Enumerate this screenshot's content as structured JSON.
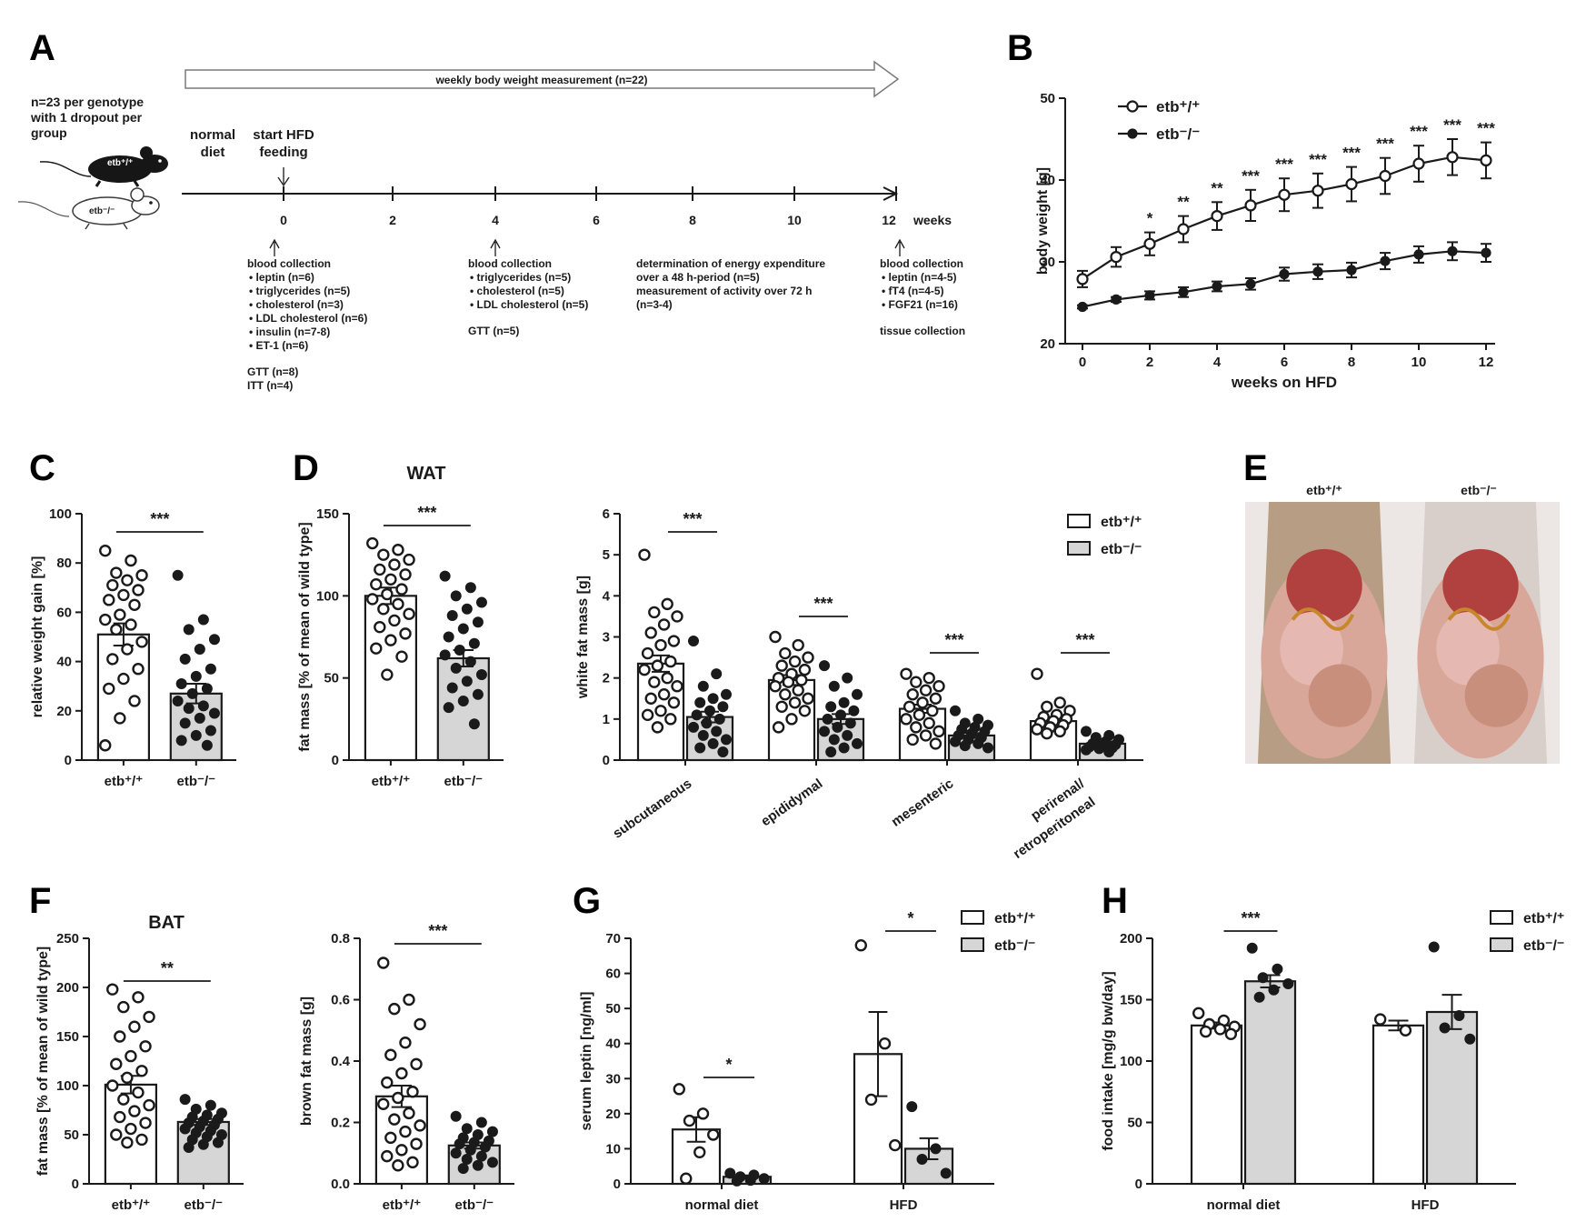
{
  "panel_letters": [
    "A",
    "B",
    "C",
    "D",
    "E",
    "F",
    "G",
    "H"
  ],
  "panel_a": {
    "arrow_label": "weekly body weight measurement (n=22)",
    "cohort_lines": [
      "n=23 per genotype",
      "with 1 dropout per",
      "group"
    ],
    "mouse_wt_label": "etb⁺/⁺",
    "mouse_ko_label": "etb⁻/⁻",
    "normal_diet_lines": [
      "normal",
      "diet"
    ],
    "start_hfd_lines": [
      "start HFD",
      "feeding"
    ],
    "ticks": [
      "0",
      "2",
      "4",
      "6",
      "8",
      "10",
      "12"
    ],
    "weeks_label": "weeks",
    "note_week0": {
      "title": "blood collection",
      "items": [
        "leptin (n=6)",
        "triglycerides (n=5)",
        "cholesterol (n=3)",
        "LDL cholesterol (n=6)",
        "insulin (n=7-8)",
        "ET-1 (n=6)"
      ],
      "extra": [
        "GTT (n=8)",
        "ITT (n=4)"
      ]
    },
    "note_week4": {
      "title": "blood collection",
      "items": [
        "triglycerides (n=5)",
        "cholesterol (n=5)",
        "LDL cholesterol (n=5)"
      ],
      "extra": [
        "GTT (n=5)"
      ]
    },
    "note_week8": {
      "lines": [
        "determination of energy expenditure",
        "over a 48 h-period (n=5)",
        "measurement of activity over 72 h",
        "(n=3-4)"
      ]
    },
    "note_week12": {
      "title": "blood collection",
      "items": [
        "leptin (n=4-5)",
        "fT4 (n=4-5)",
        "FGF21 (n=16)"
      ],
      "extra": [
        "tissue collection"
      ]
    }
  },
  "panel_e": {
    "label_wt": "etb⁺/⁺",
    "label_ko": "etb⁻/⁻",
    "photo_colors": [
      "#d9a79a",
      "#b0413e",
      "#e6b8b2",
      "#c98f7d"
    ]
  },
  "chart_data": [
    {
      "id": "B",
      "type": "line",
      "xlabel": "weeks on HFD",
      "ylabel": "body weight [g]",
      "xlim": [
        0,
        12
      ],
      "ylim": [
        20,
        50
      ],
      "xticks": [
        0,
        2,
        4,
        6,
        8,
        10,
        12
      ],
      "yticks": [
        20,
        30,
        40,
        50
      ],
      "x": [
        0,
        1,
        2,
        3,
        4,
        5,
        6,
        7,
        8,
        9,
        10,
        11,
        12
      ],
      "series": [
        {
          "name": "etb⁺/⁺",
          "marker": "open-circle",
          "values": [
            27.9,
            30.6,
            32.2,
            34.0,
            35.6,
            36.9,
            38.2,
            38.7,
            39.5,
            40.5,
            42.0,
            42.8,
            42.4
          ],
          "sem": [
            1.0,
            1.2,
            1.4,
            1.6,
            1.7,
            1.9,
            2.0,
            2.1,
            2.1,
            2.2,
            2.2,
            2.2,
            2.2
          ]
        },
        {
          "name": "etb⁻/⁻",
          "marker": "filled-circle",
          "values": [
            24.5,
            25.4,
            25.9,
            26.3,
            27.0,
            27.3,
            28.5,
            28.8,
            29.0,
            30.1,
            30.9,
            31.3,
            31.1
          ],
          "sem": [
            0.2,
            0.3,
            0.5,
            0.6,
            0.6,
            0.7,
            0.8,
            0.9,
            0.9,
            1.0,
            1.0,
            1.1,
            1.1
          ]
        }
      ],
      "significance": [
        "",
        "",
        "*",
        "**",
        "**",
        "***",
        "***",
        "***",
        "***",
        "***",
        "***",
        "***",
        "***"
      ],
      "legend": "top-left"
    },
    {
      "id": "C",
      "type": "bar",
      "ylabel": "relative weight gain [%]",
      "ylim": [
        0,
        100
      ],
      "yticks": [
        0,
        20,
        40,
        60,
        80,
        100
      ],
      "categories": [
        "etb⁺/⁺",
        "etb⁻/⁻"
      ],
      "values": [
        51,
        27
      ],
      "sem": [
        4.5,
        4.0
      ],
      "points": [
        [
          85,
          81,
          76,
          75,
          73,
          71,
          69,
          67,
          65,
          63,
          59,
          57,
          55,
          53,
          48,
          45,
          41,
          37,
          33,
          29,
          24,
          17,
          6
        ],
        [
          75,
          57,
          53,
          49,
          45,
          41,
          37,
          34,
          31,
          29,
          27,
          24,
          22,
          21,
          19,
          17,
          15,
          12,
          10,
          8,
          6
        ]
      ],
      "significance": [
        {
          "pair": [
            0,
            1
          ],
          "label": "***"
        }
      ]
    },
    {
      "id": "D1",
      "type": "bar",
      "title": "WAT",
      "ylabel": "fat mass [% of mean of wild type]",
      "ylim": [
        0,
        150
      ],
      "yticks": [
        0,
        50,
        100,
        150
      ],
      "categories": [
        "etb⁺/⁺",
        "etb⁻/⁻"
      ],
      "values": [
        100,
        62
      ],
      "sem": [
        5,
        5
      ],
      "points": [
        [
          132,
          128,
          125,
          122,
          119,
          116,
          113,
          110,
          107,
          104,
          101,
          98,
          95,
          92,
          89,
          85,
          81,
          77,
          73,
          68,
          63,
          52
        ],
        [
          112,
          105,
          100,
          96,
          92,
          88,
          84,
          80,
          75,
          71,
          67,
          64,
          60,
          56,
          52,
          48,
          44,
          40,
          36,
          32,
          22
        ]
      ],
      "significance": [
        {
          "pair": [
            0,
            1
          ],
          "label": "***"
        }
      ]
    },
    {
      "id": "D2",
      "type": "bar",
      "ylabel": "white fat mass [g]",
      "ylim": [
        0,
        6
      ],
      "yticks": [
        0,
        1,
        2,
        3,
        4,
        5,
        6
      ],
      "categories": [
        "subcutaneous",
        "epididymal",
        "mesenteric",
        "perirenal/\nretroperitoneal"
      ],
      "series": [
        {
          "name": "etb⁺/⁺",
          "values": [
            2.35,
            1.95,
            1.25,
            0.95
          ],
          "sem": [
            0.2,
            0.12,
            0.1,
            0.07
          ],
          "points": [
            [
              5.0,
              3.8,
              3.6,
              3.5,
              3.3,
              3.1,
              2.9,
              2.8,
              2.6,
              2.4,
              2.3,
              2.2,
              2.0,
              1.9,
              1.8,
              1.6,
              1.5,
              1.4,
              1.2,
              1.1,
              1.0,
              0.8
            ],
            [
              3.0,
              2.8,
              2.6,
              2.5,
              2.4,
              2.3,
              2.2,
              2.1,
              2.0,
              1.95,
              1.9,
              1.8,
              1.7,
              1.6,
              1.5,
              1.4,
              1.3,
              1.2,
              1.0,
              0.8
            ],
            [
              2.1,
              2.0,
              1.9,
              1.8,
              1.7,
              1.6,
              1.5,
              1.4,
              1.3,
              1.2,
              1.1,
              1.0,
              0.9,
              0.8,
              0.7,
              0.6,
              0.5,
              0.4
            ],
            [
              2.1,
              1.4,
              1.3,
              1.2,
              1.1,
              1.05,
              1.0,
              0.95,
              0.9,
              0.85,
              0.8,
              0.75,
              0.7,
              0.65
            ]
          ]
        },
        {
          "name": "etb⁻/⁻",
          "values": [
            1.05,
            1.0,
            0.6,
            0.4
          ],
          "sem": [
            0.13,
            0.12,
            0.06,
            0.04
          ],
          "points": [
            [
              2.9,
              2.1,
              1.8,
              1.6,
              1.5,
              1.4,
              1.3,
              1.2,
              1.1,
              1.0,
              0.9,
              0.8,
              0.7,
              0.6,
              0.5,
              0.4,
              0.3,
              0.2
            ],
            [
              2.3,
              2.0,
              1.8,
              1.6,
              1.4,
              1.3,
              1.2,
              1.1,
              1.0,
              0.9,
              0.8,
              0.7,
              0.6,
              0.5,
              0.4,
              0.3,
              0.2
            ],
            [
              1.2,
              1.0,
              0.9,
              0.85,
              0.8,
              0.75,
              0.7,
              0.65,
              0.6,
              0.55,
              0.5,
              0.45,
              0.4,
              0.35,
              0.3
            ],
            [
              0.7,
              0.6,
              0.55,
              0.5,
              0.45,
              0.4,
              0.38,
              0.35,
              0.32,
              0.3,
              0.28,
              0.25,
              0.2
            ]
          ]
        }
      ],
      "significance": [
        "***",
        "***",
        "***",
        "***"
      ],
      "legend": "top-right"
    },
    {
      "id": "F1",
      "type": "bar",
      "title": "BAT",
      "ylabel": "fat mass [% of mean of wild type]",
      "ylim": [
        0,
        250
      ],
      "yticks": [
        0,
        50,
        100,
        150,
        200,
        250
      ],
      "categories": [
        "etb⁺/⁺",
        "etb⁻/⁻"
      ],
      "values": [
        101,
        63
      ],
      "sem": [
        9,
        3
      ],
      "points": [
        [
          198,
          190,
          180,
          170,
          160,
          150,
          140,
          130,
          122,
          115,
          108,
          100,
          93,
          86,
          80,
          74,
          68,
          62,
          56,
          50,
          45,
          42
        ],
        [
          86,
          80,
          76,
          72,
          70,
          68,
          66,
          64,
          62,
          60,
          58,
          56,
          54,
          52,
          50,
          48,
          45,
          42,
          40,
          37
        ]
      ],
      "significance": [
        {
          "pair": [
            0,
            1
          ],
          "label": "**"
        }
      ]
    },
    {
      "id": "F2",
      "type": "bar",
      "ylabel": "brown fat mass [g]",
      "ylim": [
        0,
        0.8
      ],
      "yticks": [
        0.0,
        0.2,
        0.4,
        0.6,
        0.8
      ],
      "categories": [
        "etb⁺/⁺",
        "etb⁻/⁻"
      ],
      "values": [
        0.285,
        0.125
      ],
      "sem": [
        0.035,
        0.01
      ],
      "points": [
        [
          0.72,
          0.6,
          0.57,
          0.52,
          0.46,
          0.42,
          0.39,
          0.36,
          0.33,
          0.3,
          0.28,
          0.26,
          0.23,
          0.21,
          0.19,
          0.17,
          0.15,
          0.13,
          0.11,
          0.09,
          0.07,
          0.06
        ],
        [
          0.22,
          0.2,
          0.18,
          0.17,
          0.16,
          0.15,
          0.14,
          0.135,
          0.13,
          0.12,
          0.11,
          0.1,
          0.09,
          0.08,
          0.07,
          0.06,
          0.05
        ]
      ],
      "significance": [
        {
          "pair": [
            0,
            1
          ],
          "label": "***"
        }
      ]
    },
    {
      "id": "G",
      "type": "bar",
      "ylabel": "serum leptin [ng/ml]",
      "ylim": [
        0,
        70
      ],
      "yticks": [
        0,
        10,
        20,
        30,
        40,
        50,
        60,
        70
      ],
      "categories": [
        "normal diet",
        "HFD"
      ],
      "series": [
        {
          "name": "etb⁺/⁺",
          "values": [
            15.5,
            37.0
          ],
          "sem": [
            3.5,
            12.0
          ],
          "points": [
            [
              27,
              20,
              18,
              14,
              9,
              1.5
            ],
            [
              68,
              40,
              24,
              11
            ]
          ]
        },
        {
          "name": "etb⁻/⁻",
          "values": [
            2.0,
            10.0
          ],
          "sem": [
            0.4,
            3.0
          ],
          "points": [
            [
              3.0,
              2.5,
              2.0,
              1.5,
              1.0,
              0.8
            ],
            [
              22,
              10,
              7,
              3
            ]
          ]
        }
      ],
      "significance": [
        "*",
        "*"
      ],
      "legend": "top-right"
    },
    {
      "id": "H",
      "type": "bar",
      "ylabel": "food intake [mg/g bw/day]",
      "ylim": [
        0,
        200
      ],
      "yticks": [
        0,
        50,
        100,
        150,
        200
      ],
      "categories": [
        "normal diet",
        "HFD"
      ],
      "series": [
        {
          "name": "etb⁺/⁺",
          "values": [
            129,
            129
          ],
          "sem": [
            2.5,
            4
          ],
          "points": [
            [
              139,
              133,
              130,
              128,
              126,
              124,
              122
            ],
            [
              134,
              125
            ]
          ]
        },
        {
          "name": "etb⁻/⁻",
          "values": [
            165,
            140
          ],
          "sem": [
            5,
            14
          ],
          "points": [
            [
              192,
              175,
              168,
              163,
              158,
              152
            ],
            [
              193,
              137,
              127,
              118
            ]
          ]
        }
      ],
      "significance": [
        "***",
        ""
      ],
      "legend": "top-right"
    }
  ]
}
